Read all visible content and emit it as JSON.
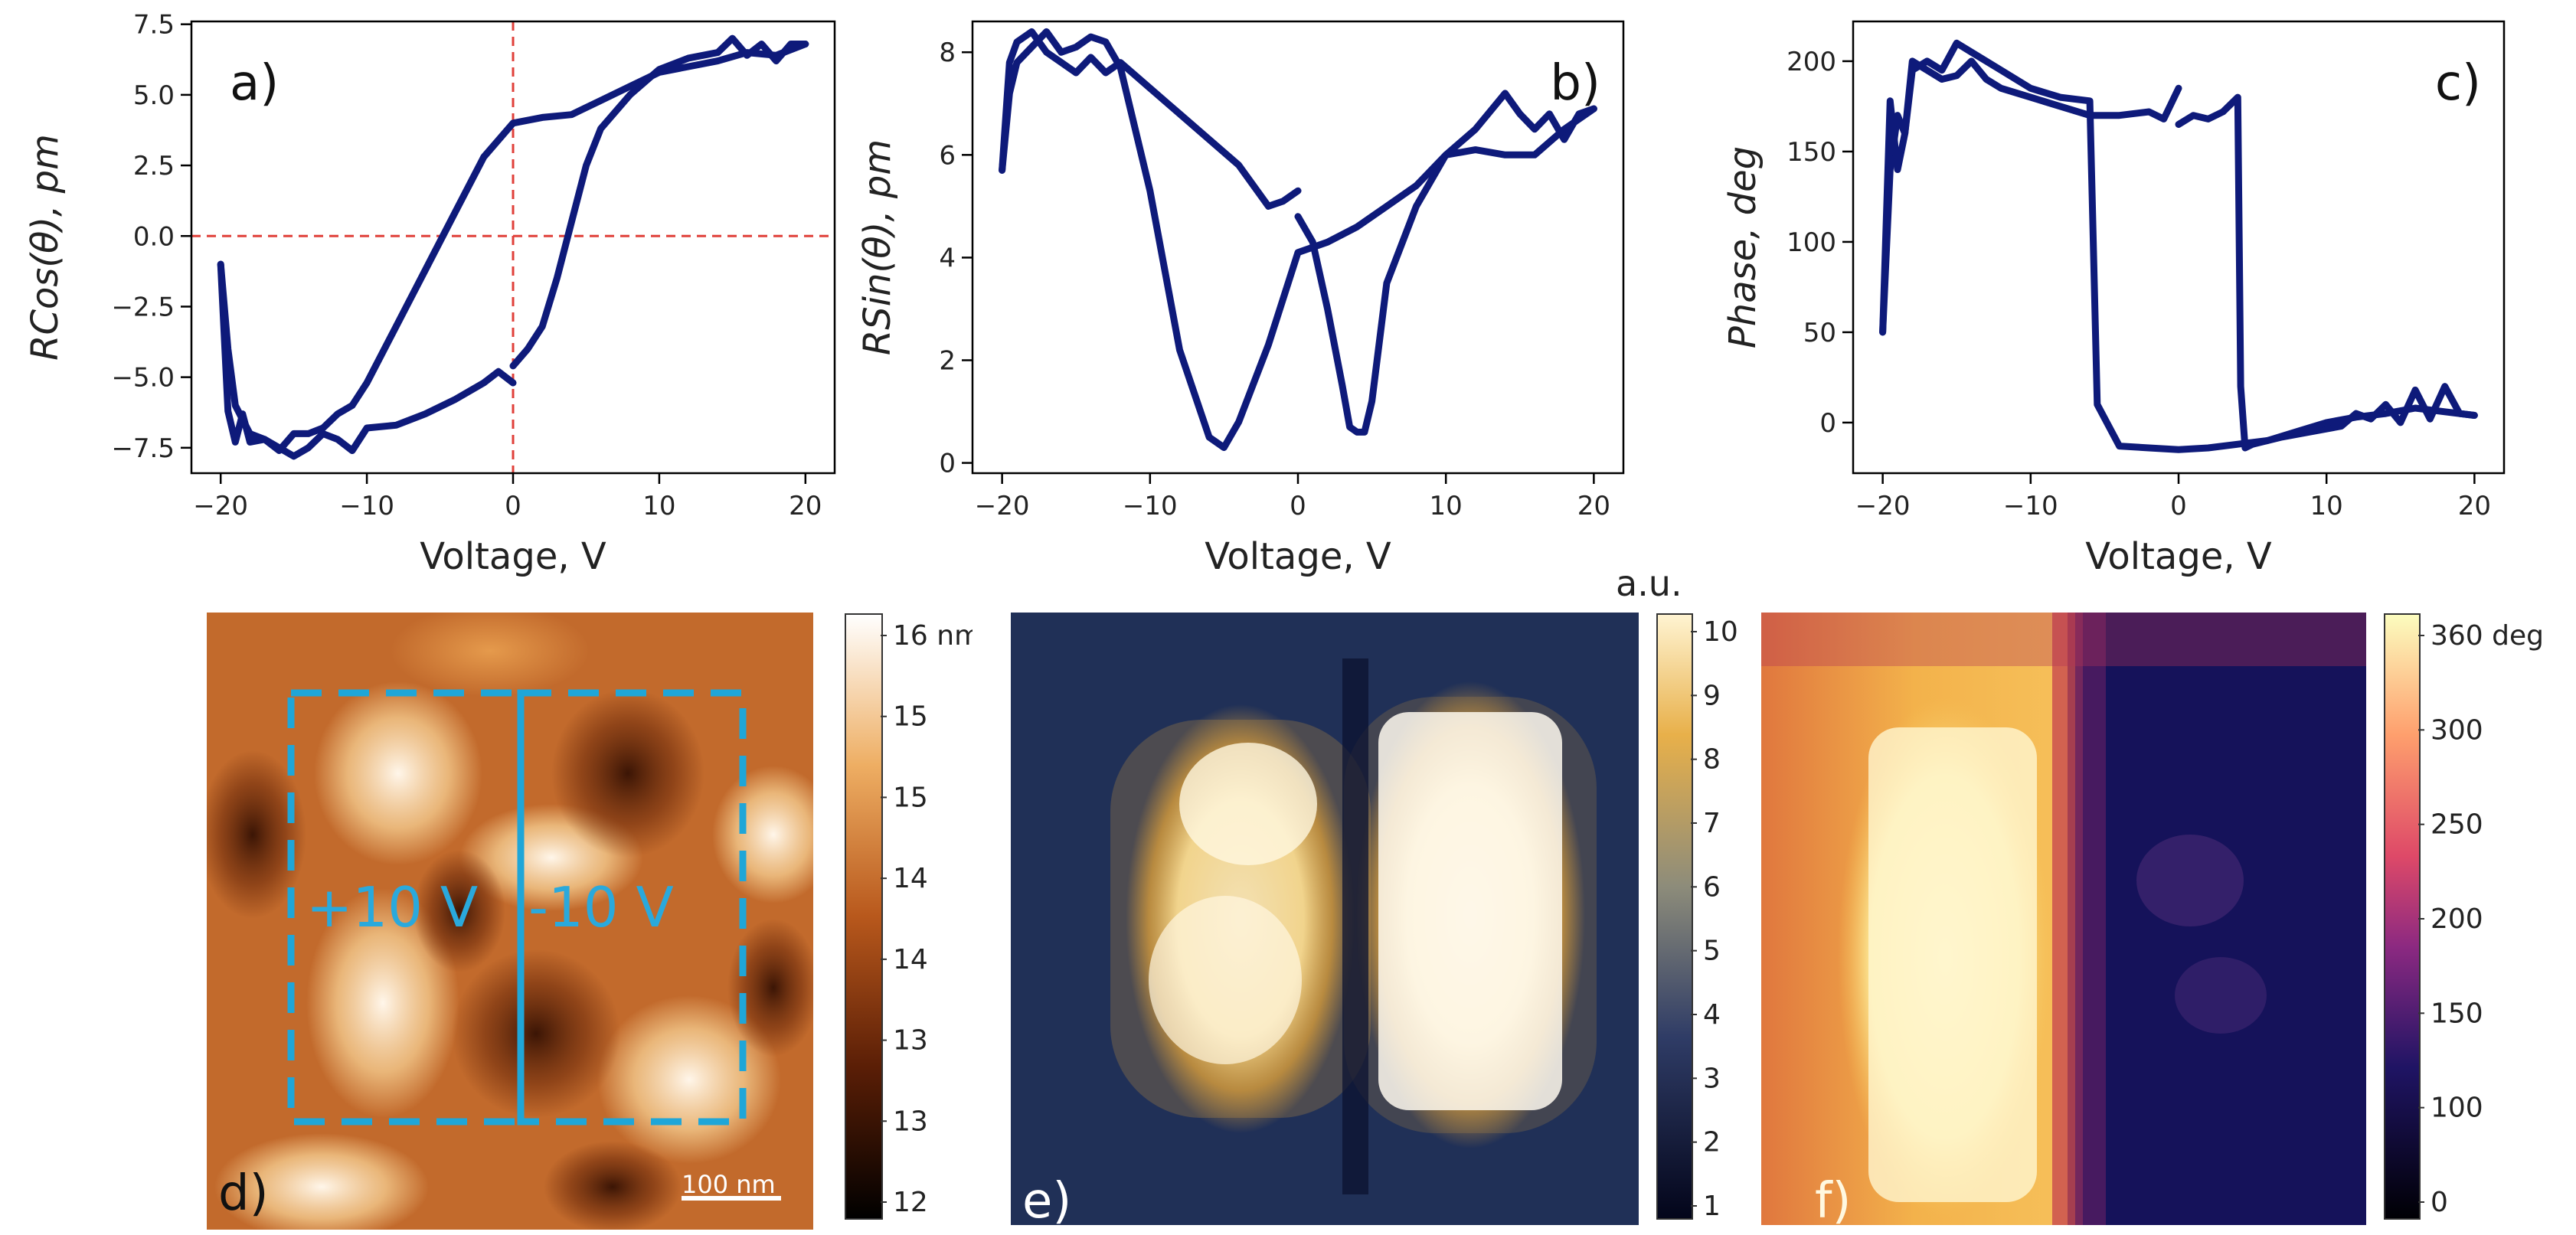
{
  "chart_data": [
    {
      "type": "line",
      "panel_label": "a)",
      "xlabel": "Voltage, V",
      "ylabel": "RCos(θ), pm",
      "xlim": [
        -22,
        22
      ],
      "ylim": [
        -8.4,
        7.6
      ],
      "xticks": [
        -20,
        -10,
        0,
        10,
        20
      ],
      "yticks": [
        -7.5,
        -5.0,
        -2.5,
        0.0,
        2.5,
        5.0,
        7.5
      ],
      "ytick_labels": [
        "−7.5",
        "−5.0",
        "−2.5",
        "0.0",
        "2.5",
        "5.0",
        "7.5"
      ],
      "xtick_labels": [
        "−20",
        "−10",
        "0",
        "10",
        "20"
      ],
      "reference_lines": {
        "x": 0,
        "y": 0,
        "color": "#e0403a"
      },
      "series": [
        {
          "x": [
            0,
            1,
            2,
            3,
            4,
            5,
            6,
            8,
            10,
            12,
            14,
            15,
            16,
            17,
            18,
            19,
            20
          ],
          "y": [
            -4.6,
            -4.0,
            -3.2,
            -1.5,
            0.5,
            2.5,
            3.8,
            5.0,
            5.9,
            6.3,
            6.5,
            7.0,
            6.4,
            6.8,
            6.2,
            6.8,
            6.8
          ]
        },
        {
          "x": [
            20,
            18,
            16,
            14,
            12,
            10,
            8,
            6,
            4,
            2,
            0,
            -2,
            -4,
            -6,
            -8,
            -10,
            -11,
            -12,
            -13,
            -14,
            -15,
            -16,
            -17,
            -18,
            -18.5,
            -19,
            -19.5,
            -20
          ],
          "y": [
            6.8,
            6.4,
            6.5,
            6.2,
            6.0,
            5.8,
            5.3,
            4.8,
            4.3,
            4.2,
            4.0,
            2.8,
            0.8,
            -1.2,
            -3.2,
            -5.2,
            -6.0,
            -6.3,
            -6.8,
            -7.0,
            -7.0,
            -7.6,
            -7.2,
            -7.3,
            -6.3,
            -7.3,
            -6.2,
            -1.0
          ]
        },
        {
          "x": [
            -20,
            -19.5,
            -19,
            -18,
            -17,
            -16,
            -15,
            -14,
            -13,
            -12,
            -11,
            -10,
            -8,
            -6,
            -4,
            -2,
            -1,
            0
          ],
          "y": [
            -1.0,
            -4.0,
            -6.0,
            -7.0,
            -7.2,
            -7.5,
            -7.8,
            -7.5,
            -7.0,
            -7.2,
            -7.6,
            -6.8,
            -6.7,
            -6.3,
            -5.8,
            -5.2,
            -4.8,
            -5.2
          ]
        }
      ]
    },
    {
      "type": "line",
      "panel_label": "b)",
      "xlabel": "Voltage, V",
      "ylabel": "RSin(θ), pm",
      "xlim": [
        -22,
        22
      ],
      "ylim": [
        -0.2,
        8.6
      ],
      "xticks": [
        -20,
        -10,
        0,
        10,
        20
      ],
      "yticks": [
        0,
        2,
        4,
        6,
        8
      ],
      "xtick_labels": [
        "−20",
        "−10",
        "0",
        "10",
        "20"
      ],
      "ytick_labels": [
        "0",
        "2",
        "4",
        "6",
        "8"
      ],
      "series": [
        {
          "x": [
            0,
            1,
            2,
            3,
            3.5,
            4,
            4.5,
            5,
            6,
            8,
            10,
            12,
            14,
            15,
            16,
            17,
            18,
            19,
            20
          ],
          "y": [
            4.8,
            4.3,
            3.0,
            1.5,
            0.7,
            0.6,
            0.6,
            1.2,
            3.5,
            5.0,
            6.0,
            6.5,
            7.2,
            6.8,
            6.5,
            6.8,
            6.3,
            6.8,
            6.9
          ]
        },
        {
          "x": [
            20,
            18,
            16,
            14,
            12,
            10,
            8,
            6,
            4,
            2,
            0,
            -2,
            -4,
            -5,
            -6,
            -8,
            -10,
            -12,
            -13,
            -14,
            -15,
            -16,
            -17,
            -18,
            -19,
            -19.5,
            -20
          ],
          "y": [
            6.9,
            6.5,
            6.0,
            6.0,
            6.1,
            6.0,
            5.4,
            5.0,
            4.6,
            4.3,
            4.1,
            2.3,
            0.8,
            0.3,
            0.5,
            2.2,
            5.3,
            7.7,
            8.2,
            8.3,
            8.1,
            8.0,
            8.4,
            8.1,
            7.8,
            7.2,
            5.7
          ]
        },
        {
          "x": [
            -20,
            -19.5,
            -19,
            -18,
            -17,
            -16,
            -15,
            -14,
            -13,
            -12,
            -10,
            -8,
            -6,
            -4,
            -2,
            -1,
            0
          ],
          "y": [
            5.7,
            7.8,
            8.2,
            8.4,
            8.0,
            7.8,
            7.6,
            7.9,
            7.6,
            7.8,
            7.3,
            6.8,
            6.3,
            5.8,
            5.0,
            5.1,
            5.3
          ]
        }
      ]
    },
    {
      "type": "line",
      "panel_label": "c)",
      "xlabel": "Voltage, V",
      "ylabel": "Phase, deg",
      "xlim": [
        -22,
        22
      ],
      "ylim": [
        -28,
        222
      ],
      "xticks": [
        -20,
        -10,
        0,
        10,
        20
      ],
      "yticks": [
        0,
        50,
        100,
        150,
        200
      ],
      "xtick_labels": [
        "−20",
        "−10",
        "0",
        "10",
        "20"
      ],
      "ytick_labels": [
        "0",
        "50",
        "100",
        "150",
        "200"
      ],
      "series": [
        {
          "x": [
            0,
            1,
            2,
            3,
            4,
            4.2,
            4.5,
            5,
            7,
            9,
            11,
            12,
            13,
            14,
            15,
            16,
            17,
            18,
            19,
            20
          ],
          "y": [
            165,
            170,
            168,
            172,
            180,
            20,
            -14,
            -12,
            -8,
            -5,
            -2,
            5,
            2,
            10,
            0,
            18,
            2,
            20,
            5,
            4
          ]
        },
        {
          "x": [
            20,
            18,
            16,
            14,
            12,
            10,
            8,
            6,
            4,
            2,
            0,
            -2,
            -4,
            -5.5,
            -6,
            -8,
            -10,
            -12,
            -14,
            -15,
            -16,
            -17,
            -18,
            -18.5,
            -19,
            -19.5,
            -20
          ],
          "y": [
            4,
            6,
            8,
            5,
            3,
            0,
            -5,
            -10,
            -12,
            -14,
            -15,
            -14,
            -13,
            10,
            178,
            180,
            185,
            195,
            205,
            210,
            195,
            200,
            195,
            160,
            170,
            140,
            50
          ]
        },
        {
          "x": [
            -20,
            -19.5,
            -19,
            -18.5,
            -18,
            -17,
            -16,
            -15,
            -14,
            -13,
            -12,
            -10,
            -8,
            -6,
            -4,
            -2,
            -1,
            0
          ],
          "y": [
            50,
            178,
            140,
            160,
            200,
            195,
            190,
            192,
            200,
            190,
            185,
            180,
            175,
            170,
            170,
            172,
            168,
            185
          ]
        }
      ]
    }
  ],
  "images": {
    "d": {
      "panel_label": "d)",
      "colorbar_ticks": [
        "16 nm",
        "15",
        "15",
        "14",
        "14",
        "13",
        "13",
        "12"
      ],
      "annotation_left": "+10 V",
      "annotation_right": "-10 V",
      "scale_bar": "100 nm",
      "box_color": "#1fa6d8"
    },
    "e": {
      "panel_label": "e)",
      "colorbar_title": "a.u.",
      "colorbar_ticks": [
        "10",
        "9",
        "8",
        "7",
        "6",
        "5",
        "4",
        "3",
        "2",
        "1"
      ]
    },
    "f": {
      "panel_label": "f)",
      "colorbar_ticks": [
        "360 deg",
        "300",
        "250",
        "200",
        "150",
        "100",
        "0"
      ]
    }
  }
}
